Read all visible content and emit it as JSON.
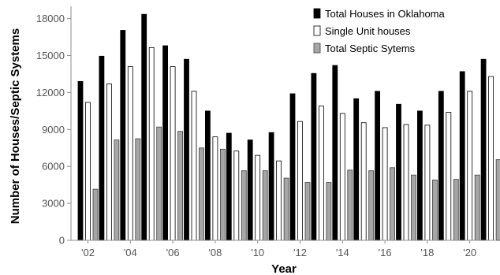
{
  "chart_data": {
    "type": "bar",
    "title": "",
    "xlabel": "Year",
    "ylabel": "Number of Houses/Septic Systems",
    "ylim": [
      0,
      19000
    ],
    "yticks": [
      0,
      3000,
      6000,
      9000,
      12000,
      15000,
      18000
    ],
    "categories": [
      "2002",
      "2003",
      "2004",
      "2005",
      "2006",
      "2007",
      "2008",
      "2009",
      "2010",
      "2011",
      "2012",
      "2013",
      "2014",
      "2015",
      "2016",
      "2017",
      "2018",
      "2019",
      "2020",
      "2021"
    ],
    "xtick_labels": [
      "'02",
      "",
      "'04",
      "",
      "'06",
      "",
      "'08",
      "",
      "'10",
      "",
      "'12",
      "",
      "'14",
      "",
      "'16",
      "",
      "'18",
      "",
      "'20",
      ""
    ],
    "legend_position": "top-right",
    "grid": false,
    "series": [
      {
        "name": "Total Houses in Oklahoma",
        "color": "#000000",
        "values": [
          12900,
          14950,
          17050,
          18350,
          15800,
          14700,
          10500,
          8700,
          8150,
          8750,
          11900,
          13550,
          14200,
          11500,
          12100,
          11050,
          10500,
          12100,
          13700,
          14700
        ]
      },
      {
        "name": "Single Unit houses",
        "color": "#ffffff",
        "values": [
          11200,
          12700,
          14100,
          15650,
          14100,
          12100,
          8400,
          7250,
          6900,
          6450,
          9650,
          10900,
          10300,
          9550,
          9150,
          9400,
          9350,
          10400,
          12100,
          13300
        ]
      },
      {
        "name": "Total Septic Sytems",
        "color": "#a6a6a6",
        "values": [
          4150,
          8150,
          8250,
          9200,
          8850,
          7500,
          7400,
          5650,
          5650,
          5050,
          4700,
          4700,
          5700,
          5650,
          5900,
          5300,
          4900,
          4950,
          5300,
          6550
        ]
      }
    ]
  }
}
